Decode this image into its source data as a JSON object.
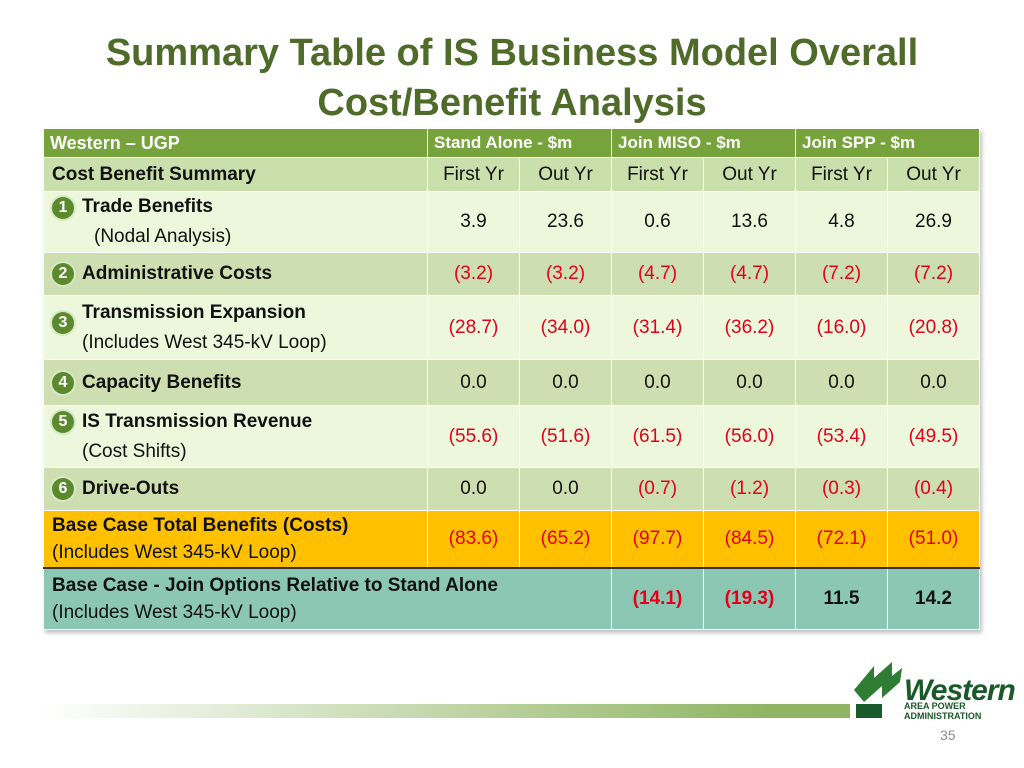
{
  "title_line1": "Summary Table of IS Business Model Overall",
  "title_line2": "Cost/Benefit Analysis",
  "header": {
    "region": "Western – UGP",
    "stand_alone": "Stand Alone - $m",
    "join_miso": "Join MISO - $m",
    "join_spp": "Join SPP - $m"
  },
  "subheader": {
    "label": "Cost Benefit Summary",
    "cols": [
      "First Yr",
      "Out Yr",
      "First Yr",
      "Out Yr",
      "First Yr",
      "Out Yr"
    ]
  },
  "rows": [
    {
      "num": "1",
      "label": "Trade Benefits",
      "sub": "(Nodal Analysis)",
      "values": [
        "3.9",
        "23.6",
        "0.6",
        "13.6",
        "4.8",
        "26.9"
      ]
    },
    {
      "num": "2",
      "label": "Administrative Costs",
      "sub": "",
      "values": [
        "(3.2)",
        "(3.2)",
        "(4.7)",
        "(4.7)",
        "(7.2)",
        "(7.2)"
      ]
    },
    {
      "num": "3",
      "label": "Transmission Expansion",
      "sub": "(Includes West 345-kV Loop)",
      "values": [
        "(28.7)",
        "(34.0)",
        "(31.4)",
        "(36.2)",
        "(16.0)",
        "(20.8)"
      ]
    },
    {
      "num": "4",
      "label": "Capacity Benefits",
      "sub": "",
      "values": [
        "0.0",
        "0.0",
        "0.0",
        "0.0",
        "0.0",
        "0.0"
      ]
    },
    {
      "num": "5",
      "label": "IS Transmission Revenue",
      "sub": "(Cost Shifts)",
      "values": [
        "(55.6)",
        "(51.6)",
        "(61.5)",
        "(56.0)",
        "(53.4)",
        "(49.5)"
      ]
    },
    {
      "num": "6",
      "label": "Drive-Outs",
      "sub": "",
      "values": [
        "0.0",
        "0.0",
        "(0.7)",
        "(1.2)",
        "(0.3)",
        "(0.4)"
      ]
    }
  ],
  "total": {
    "label": "Base Case Total Benefits (Costs)",
    "sub": "(Includes West 345-kV Loop)",
    "values": [
      "(83.6)",
      "(65.2)",
      "(97.7)",
      "(84.5)",
      "(72.1)",
      "(51.0)"
    ]
  },
  "relative": {
    "label": "Base Case - Join Options Relative to Stand Alone",
    "sub": "(Includes West 345-kV Loop)",
    "values": [
      "(14.1)",
      "(19.3)",
      "11.5",
      "14.2"
    ]
  },
  "logo": {
    "word": "Western",
    "sub_line1": "AREA POWER",
    "sub_line2": "ADMINISTRATION"
  },
  "page_number": "35",
  "colors": {
    "title": "#4f6b2a",
    "header_green": "#77a33c",
    "total_orange": "#ffc000",
    "relative_teal": "#8cc7b4",
    "negative_red": "#e3001b"
  }
}
